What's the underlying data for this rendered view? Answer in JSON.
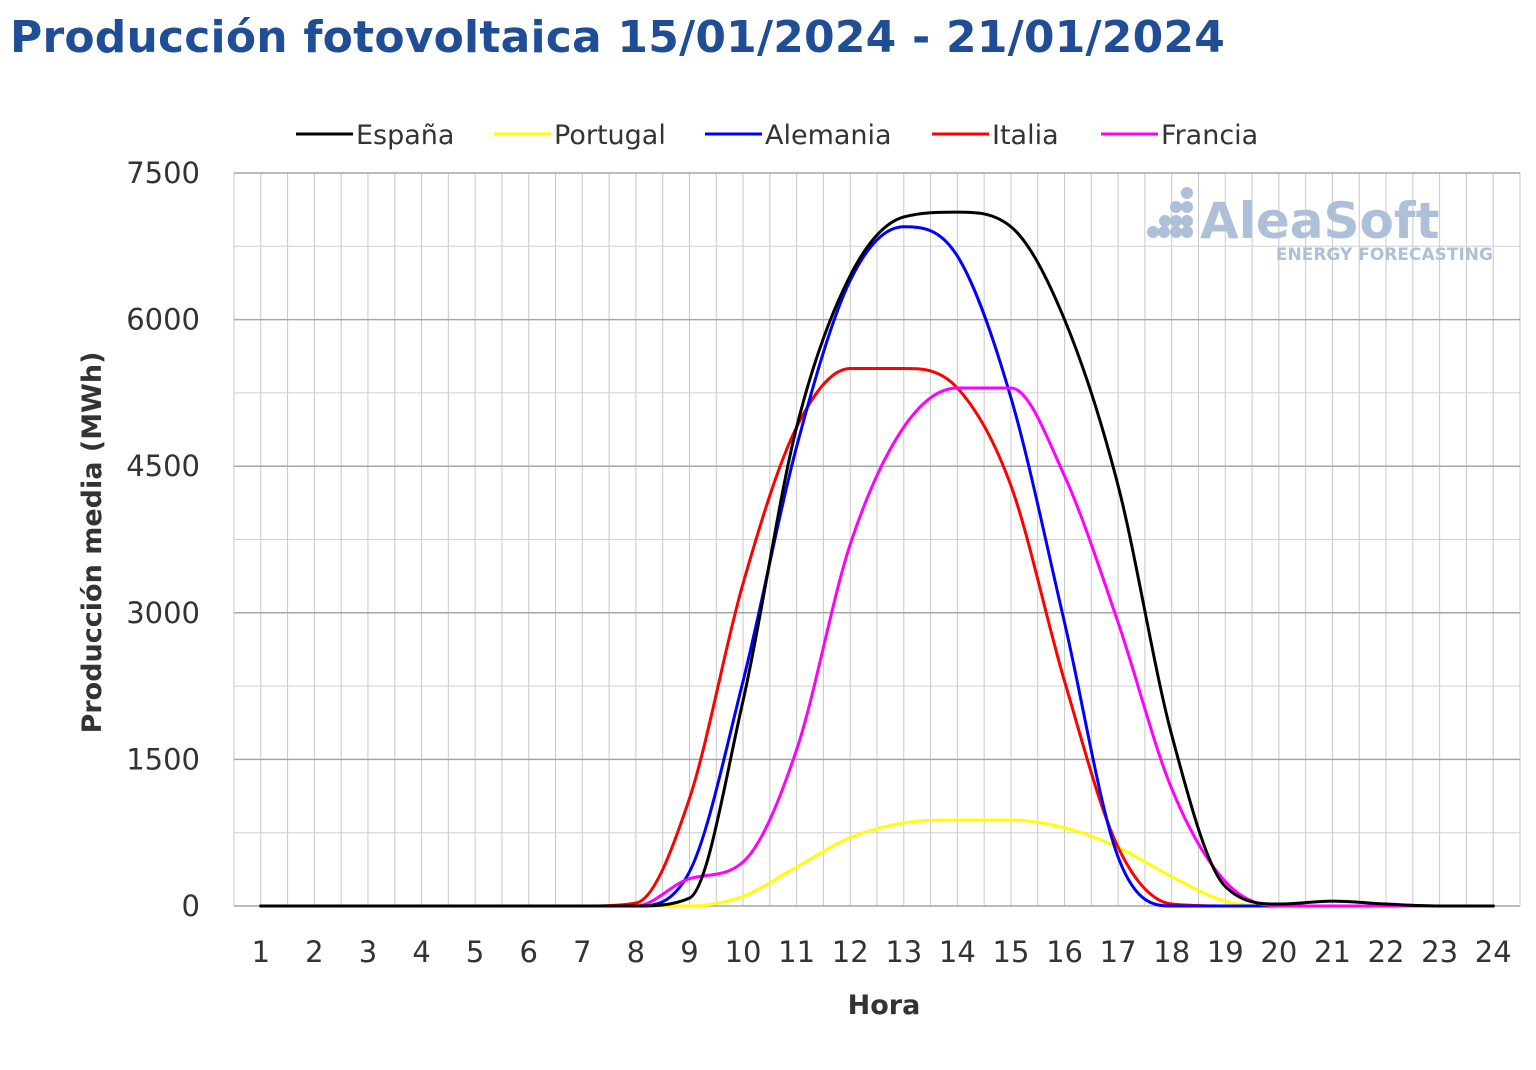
{
  "title": "Producción fotovoltaica 15/01/2024 - 21/01/2024",
  "watermark": {
    "brand": "AleaSoft",
    "tagline": "ENERGY FORECASTING"
  },
  "chart_data": {
    "type": "line",
    "xlabel": "Hora",
    "ylabel": "Producción media (MWh)",
    "categories": [
      "1",
      "2",
      "3",
      "4",
      "5",
      "6",
      "7",
      "8",
      "9",
      "10",
      "11",
      "12",
      "13",
      "14",
      "15",
      "16",
      "17",
      "18",
      "19",
      "20",
      "21",
      "22",
      "23",
      "24"
    ],
    "ylim": [
      0,
      7500
    ],
    "yticks": [
      0,
      1500,
      3000,
      4500,
      6000,
      7500
    ],
    "grid": true,
    "legend_position": "top",
    "series": [
      {
        "name": "España",
        "color": "#000000",
        "values": [
          0,
          0,
          0,
          0,
          0,
          0,
          0,
          0,
          80,
          2100,
          4900,
          6450,
          7050,
          7100,
          6950,
          6000,
          4300,
          1750,
          200,
          20,
          50,
          20,
          0,
          0
        ]
      },
      {
        "name": "Portugal",
        "color": "#ffff00",
        "values": [
          0,
          0,
          0,
          0,
          0,
          0,
          0,
          0,
          0,
          100,
          400,
          700,
          850,
          880,
          880,
          800,
          600,
          300,
          50,
          0,
          0,
          0,
          0,
          0
        ]
      },
      {
        "name": "Alemania",
        "color": "#0000ff",
        "values": [
          0,
          0,
          0,
          0,
          0,
          0,
          0,
          0,
          350,
          2300,
          4700,
          6400,
          6950,
          6650,
          5200,
          2900,
          500,
          0,
          0,
          0,
          0,
          0,
          0,
          0
        ]
      },
      {
        "name": "Italia",
        "color": "#ff0000",
        "values": [
          0,
          0,
          0,
          0,
          0,
          0,
          0,
          30,
          1100,
          3300,
          4900,
          5500,
          5500,
          5300,
          4300,
          2300,
          600,
          20,
          0,
          0,
          0,
          0,
          0,
          0
        ]
      },
      {
        "name": "Francia",
        "color": "#ff00ff",
        "values": [
          0,
          0,
          0,
          0,
          0,
          0,
          0,
          0,
          280,
          450,
          1600,
          3700,
          4900,
          5300,
          5300,
          4400,
          2900,
          1200,
          250,
          0,
          0,
          0,
          0,
          0
        ]
      }
    ]
  }
}
